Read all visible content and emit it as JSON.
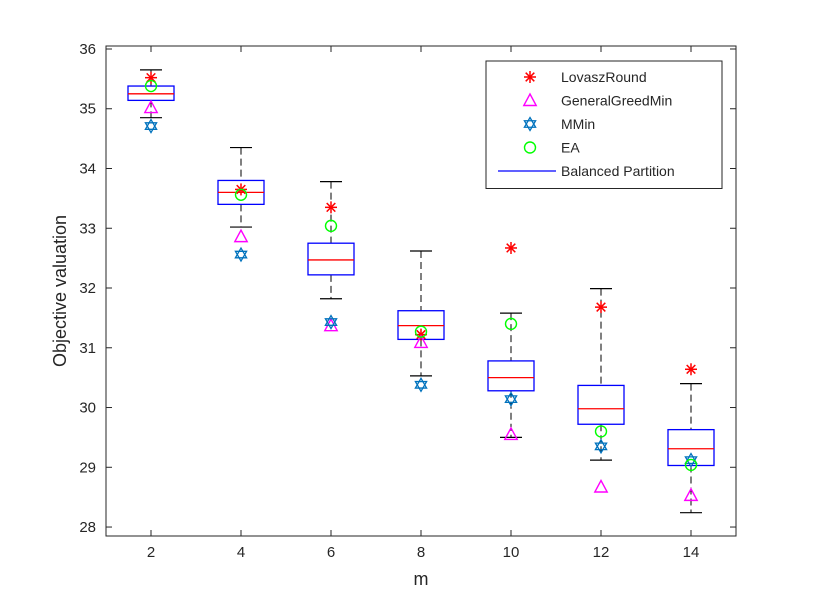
{
  "chart_data": {
    "type": "box",
    "xlabel": "m",
    "ylabel": "Objective valuation",
    "xlim": [
      1,
      15
    ],
    "ylim": [
      27.85,
      36.05
    ],
    "xticks": [
      2,
      4,
      6,
      8,
      10,
      12,
      14
    ],
    "yticks": [
      28,
      29,
      30,
      31,
      32,
      33,
      34,
      35,
      36
    ],
    "legend_position": "top-right",
    "box_series": {
      "name": "Balanced Partition",
      "color": "#0000ff",
      "median_color": "#ff0000",
      "whisker_color": "#000000",
      "boxes": [
        {
          "x": 2,
          "whisker_low": 34.85,
          "q1": 35.14,
          "median": 35.25,
          "q3": 35.38,
          "whisker_high": 35.65
        },
        {
          "x": 4,
          "whisker_low": 33.02,
          "q1": 33.4,
          "median": 33.6,
          "q3": 33.8,
          "whisker_high": 34.35
        },
        {
          "x": 6,
          "whisker_low": 31.82,
          "q1": 32.22,
          "median": 32.47,
          "q3": 32.75,
          "whisker_high": 33.78
        },
        {
          "x": 8,
          "whisker_low": 30.53,
          "q1": 31.14,
          "median": 31.37,
          "q3": 31.62,
          "whisker_high": 32.62
        },
        {
          "x": 10,
          "whisker_low": 29.5,
          "q1": 30.28,
          "median": 30.5,
          "q3": 30.78,
          "whisker_high": 31.58
        },
        {
          "x": 12,
          "whisker_low": 29.12,
          "q1": 29.72,
          "median": 29.98,
          "q3": 30.37,
          "whisker_high": 31.99
        },
        {
          "x": 14,
          "whisker_low": 28.24,
          "q1": 29.03,
          "median": 29.31,
          "q3": 29.63,
          "whisker_high": 30.4
        }
      ]
    },
    "marker_series": [
      {
        "name": "LovaszRound",
        "marker": "asterisk",
        "color": "#ff0000",
        "points": [
          [
            2,
            35.52
          ],
          [
            4,
            33.65
          ],
          [
            6,
            33.35
          ],
          [
            8,
            31.22
          ],
          [
            10,
            32.67
          ],
          [
            12,
            31.68
          ],
          [
            14,
            30.64
          ]
        ]
      },
      {
        "name": "GeneralGreedMin",
        "marker": "triangle",
        "color": "#ff00ff",
        "points": [
          [
            2,
            35.02
          ],
          [
            4,
            32.86
          ],
          [
            6,
            31.37
          ],
          [
            8,
            31.09
          ],
          [
            10,
            29.55
          ],
          [
            12,
            28.67
          ],
          [
            14,
            28.53
          ]
        ]
      },
      {
        "name": "MMin",
        "marker": "hexagram",
        "color": "#0072bd",
        "points": [
          [
            2,
            34.71
          ],
          [
            4,
            32.56
          ],
          [
            6,
            31.43
          ],
          [
            8,
            30.38
          ],
          [
            10,
            30.14
          ],
          [
            12,
            29.35
          ],
          [
            14,
            29.12
          ]
        ]
      },
      {
        "name": "EA",
        "marker": "circle",
        "color": "#00ff00",
        "points": [
          [
            2,
            35.38
          ],
          [
            4,
            33.56
          ],
          [
            6,
            33.04
          ],
          [
            8,
            31.27
          ],
          [
            10,
            31.4
          ],
          [
            12,
            29.6
          ],
          [
            14,
            29.04
          ]
        ]
      }
    ]
  }
}
